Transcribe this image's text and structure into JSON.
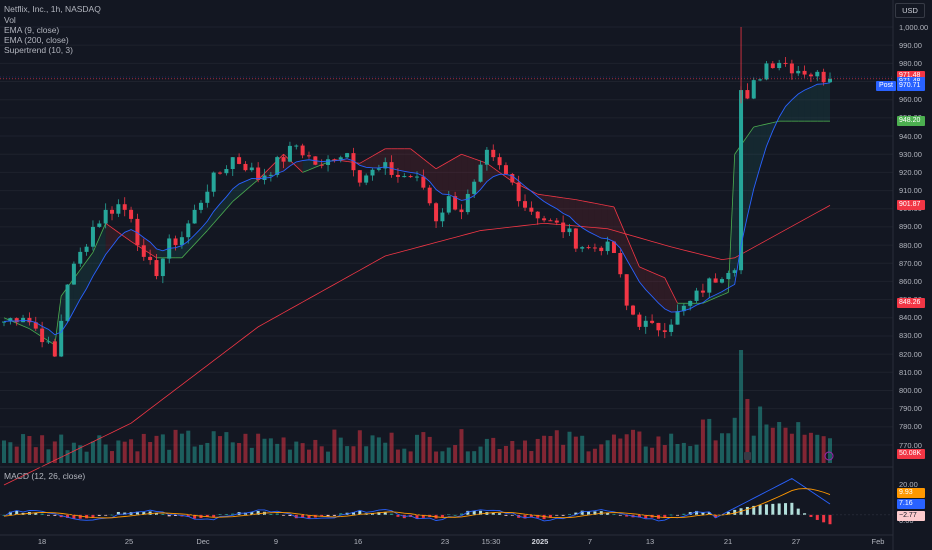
{
  "header": {
    "title": "Netflix, Inc., 1h, NASDAQ",
    "indicators": [
      "Vol",
      "EMA (9, close)",
      "EMA (200, close)",
      "Supertrend (10, 3)"
    ],
    "currency_button": "USD"
  },
  "macd_legend": "MACD (12, 26, close)",
  "price_axis": {
    "labels": [
      "1,000.00",
      "990.00",
      "980.00",
      "970.00",
      "960.00",
      "950.00",
      "940.00",
      "930.00",
      "920.00",
      "910.00",
      "900.00",
      "890.00",
      "880.00",
      "870.00",
      "860.00",
      "850.00",
      "840.00",
      "830.00",
      "820.00",
      "810.00",
      "800.00",
      "790.00",
      "780.00",
      "770.00"
    ]
  },
  "price_tags": {
    "last_price": {
      "text": "971.48",
      "color": "#f23645"
    },
    "price_line": {
      "text": "971.48",
      "color": "#2962ff"
    },
    "post": {
      "label": "Post",
      "text": "970.71",
      "color": "#2962ff"
    },
    "supertrend_up": {
      "text": "948.20",
      "color": "#4caf50"
    },
    "ema200": {
      "text": "901.87",
      "color": "#f23645"
    },
    "supertrend_dn": {
      "text": "848.26",
      "color": "#f23645"
    },
    "volume": {
      "text": "50.08K",
      "color": "#f23645"
    }
  },
  "macd_axis": {
    "labels": [
      "20.00",
      "0.00"
    ]
  },
  "macd_tags": {
    "signal": {
      "text": "9.93",
      "color": "#ff9800"
    },
    "macd": {
      "text": "7.16",
      "color": "#2962ff"
    },
    "hist": {
      "text": "−2.77",
      "color": "#fccbcd"
    }
  },
  "time_axis": {
    "labels": [
      {
        "text": "18",
        "bold": false
      },
      {
        "text": "25",
        "bold": false
      },
      {
        "text": "Dec",
        "bold": false
      },
      {
        "text": "9",
        "bold": false
      },
      {
        "text": "16",
        "bold": false
      },
      {
        "text": "23",
        "bold": false
      },
      {
        "text": "15:30",
        "bold": false
      },
      {
        "text": "2025",
        "bold": true
      },
      {
        "text": "7",
        "bold": false
      },
      {
        "text": "13",
        "bold": false
      },
      {
        "text": "21",
        "bold": false
      },
      {
        "text": "27",
        "bold": false
      },
      {
        "text": "Feb",
        "bold": false
      }
    ]
  },
  "chart_data": {
    "type": "candlestick",
    "ylim": [
      765,
      1005
    ],
    "y_ticks": [
      1000,
      990,
      980,
      970,
      960,
      950,
      940,
      930,
      920,
      910,
      900,
      890,
      880,
      870,
      860,
      850,
      840,
      830,
      820,
      810,
      800,
      790,
      780,
      770
    ],
    "price_anchors": [
      [
        0,
        838
      ],
      [
        3,
        842
      ],
      [
        6,
        830
      ],
      [
        8,
        818
      ],
      [
        10,
        860
      ],
      [
        12,
        875
      ],
      [
        14,
        890
      ],
      [
        16,
        898
      ],
      [
        18,
        902
      ],
      [
        20,
        897
      ],
      [
        22,
        870
      ],
      [
        24,
        866
      ],
      [
        26,
        880
      ],
      [
        28,
        885
      ],
      [
        30,
        898
      ],
      [
        32,
        912
      ],
      [
        34,
        920
      ],
      [
        36,
        928
      ],
      [
        38,
        924
      ],
      [
        40,
        917
      ],
      [
        42,
        922
      ],
      [
        44,
        928
      ],
      [
        46,
        935
      ],
      [
        48,
        928
      ],
      [
        50,
        922
      ],
      [
        52,
        930
      ],
      [
        54,
        931
      ],
      [
        56,
        918
      ],
      [
        58,
        920
      ],
      [
        60,
        922
      ],
      [
        62,
        918
      ],
      [
        64,
        918
      ],
      [
        66,
        912
      ],
      [
        68,
        895
      ],
      [
        70,
        905
      ],
      [
        72,
        900
      ],
      [
        74,
        912
      ],
      [
        76,
        929
      ],
      [
        78,
        922
      ],
      [
        80,
        914
      ],
      [
        82,
        902
      ],
      [
        84,
        897
      ],
      [
        86,
        892
      ],
      [
        88,
        889
      ],
      [
        90,
        882
      ],
      [
        92,
        878
      ],
      [
        94,
        880
      ],
      [
        96,
        876
      ],
      [
        98,
        846
      ],
      [
        100,
        838
      ],
      [
        102,
        834
      ],
      [
        104,
        836
      ],
      [
        106,
        842
      ],
      [
        108,
        848
      ],
      [
        110,
        856
      ],
      [
        112,
        862
      ],
      [
        114,
        868
      ],
      [
        115,
        870
      ],
      [
        116,
        965
      ],
      [
        117,
        958
      ],
      [
        118,
        968
      ],
      [
        120,
        980
      ],
      [
        122,
        982
      ],
      [
        124,
        978
      ],
      [
        126,
        976
      ],
      [
        128,
        973
      ],
      [
        130,
        972
      ]
    ],
    "ema200_anchors": [
      [
        0,
        748
      ],
      [
        20,
        782
      ],
      [
        40,
        835
      ],
      [
        60,
        874
      ],
      [
        75,
        888
      ],
      [
        85,
        892
      ],
      [
        95,
        889
      ],
      [
        105,
        879
      ],
      [
        113,
        872
      ],
      [
        115,
        873
      ],
      [
        130,
        901.87
      ]
    ],
    "supertrend_anchors": [
      [
        0,
        840,
        "up"
      ],
      [
        4,
        834,
        "up"
      ],
      [
        8,
        825,
        "up"
      ],
      [
        9,
        852,
        "up"
      ],
      [
        14,
        876,
        "up"
      ],
      [
        16,
        892,
        "dn"
      ],
      [
        20,
        882,
        "dn"
      ],
      [
        24,
        873,
        "up"
      ],
      [
        28,
        873,
        "up"
      ],
      [
        32,
        888,
        "up"
      ],
      [
        36,
        904,
        "up"
      ],
      [
        40,
        916,
        "dn"
      ],
      [
        44,
        930,
        "dn"
      ],
      [
        47,
        920,
        "up"
      ],
      [
        52,
        927,
        "dn"
      ],
      [
        56,
        925,
        "dn"
      ],
      [
        60,
        933,
        "dn"
      ],
      [
        64,
        933,
        "dn"
      ],
      [
        68,
        922,
        "dn"
      ],
      [
        72,
        930,
        "dn"
      ],
      [
        76,
        925,
        "dn"
      ],
      [
        80,
        915,
        "dn"
      ],
      [
        84,
        908,
        "dn"
      ],
      [
        90,
        905,
        "dn"
      ],
      [
        96,
        901,
        "dn"
      ],
      [
        100,
        868,
        "dn"
      ],
      [
        104,
        862,
        "dn"
      ],
      [
        106,
        848,
        "up"
      ],
      [
        110,
        848,
        "up"
      ],
      [
        114,
        854,
        "up"
      ],
      [
        115,
        930,
        "up"
      ],
      [
        118,
        945,
        "up"
      ],
      [
        122,
        948.2,
        "up"
      ],
      [
        130,
        948.2,
        "up"
      ]
    ],
    "volume_max_k": 300,
    "macd_ylim": [
      -10,
      25
    ],
    "x_count": 131
  },
  "colors": {
    "up": "#26a69a",
    "down": "#f23645",
    "ema9": "#2962ff",
    "ema200": "#f23645",
    "macd": "#2962ff",
    "signal": "#ff9800",
    "bg": "#131722",
    "grid": "#1e222d"
  }
}
